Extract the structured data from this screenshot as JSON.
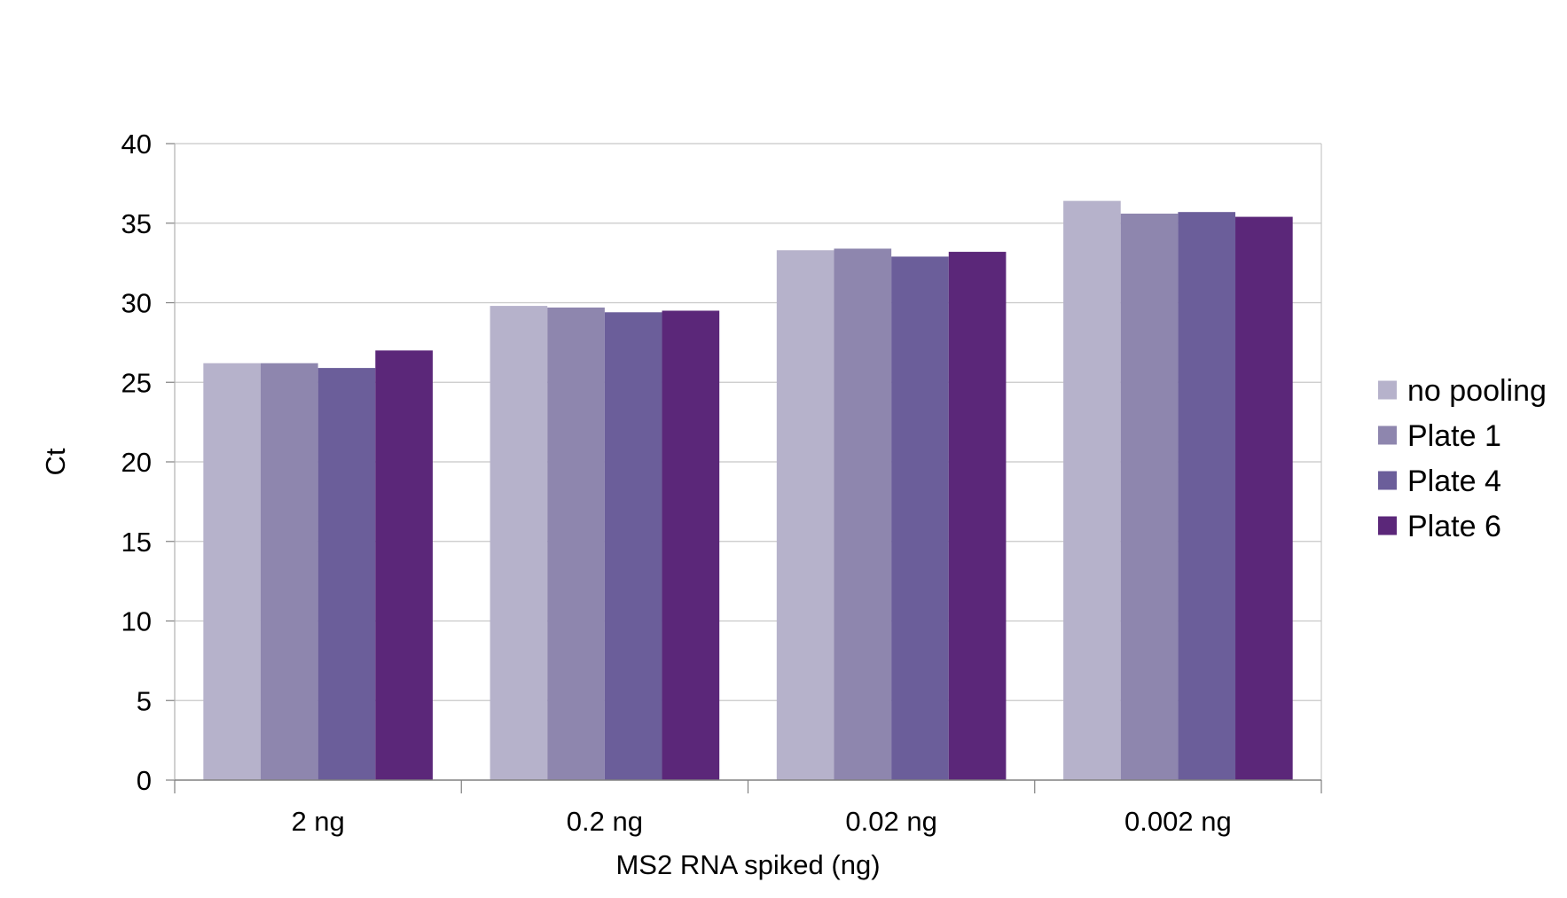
{
  "chart_data": {
    "type": "bar",
    "xlabel": "MS2 RNA spiked (ng)",
    "ylabel": "Ct",
    "categories": [
      "2 ng",
      "0.2 ng",
      "0.02 ng",
      "0.002 ng"
    ],
    "series": [
      {
        "name": "no pooling",
        "color": "#b6b2cb",
        "values": [
          26.2,
          29.8,
          33.3,
          36.4
        ]
      },
      {
        "name": "Plate 1",
        "color": "#8e86ae",
        "values": [
          26.2,
          29.7,
          33.4,
          35.6
        ]
      },
      {
        "name": "Plate 4",
        "color": "#6b5e9a",
        "values": [
          25.9,
          29.4,
          32.9,
          35.7
        ]
      },
      {
        "name": "Plate 6",
        "color": "#5b2779",
        "values": [
          27.0,
          29.5,
          33.2,
          35.4
        ]
      }
    ],
    "yticks": [
      "0",
      "5",
      "10",
      "15",
      "20",
      "25",
      "30",
      "35",
      "40"
    ],
    "ylim": [
      0,
      40
    ],
    "grid": true,
    "legend_position": "right"
  }
}
